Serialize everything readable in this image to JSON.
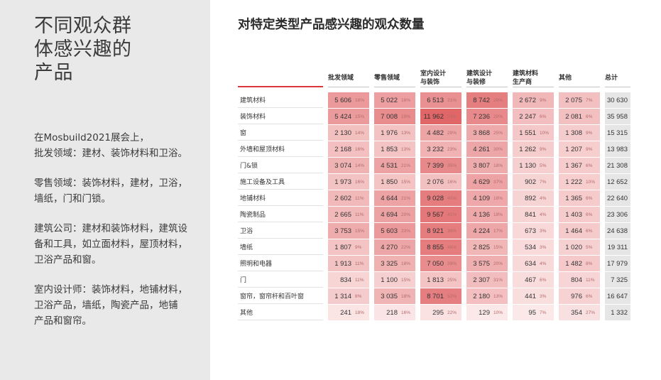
{
  "left_panel": {
    "title": "不同观众群\n体感兴趣的\n产品",
    "paragraphs": [
      "在Mosbuild2021展会上，\n批发领域：建材、装饰材料和卫浴。",
      "零售领域：装饰材料，建材，卫浴，\n墙纸，门和门锁。",
      "建筑公司：建材和装饰材料，建筑设\n备和工具，如立面材料，屋顶材料，\n卫浴产品和窗。",
      "室内设计师：装饰材料，地铺材料，\n卫浴产品，墙纸，陶瓷产品，地铺\n产品和窗帘。"
    ]
  },
  "colors": {
    "panel_bg": "#e9e9e9",
    "accent_red": "#d9363e",
    "heat_low": "#fdf1f1",
    "heat_high": "#e06668",
    "total_bg": "#e6e6e6"
  },
  "chart_data": {
    "type": "heatmap",
    "title": "对特定类型产品感兴趣的观众数量",
    "columns": [
      "批发领域",
      "零售领域",
      "室内设计\n与装饰",
      "建筑设计\n与装修",
      "建筑材料\n生产商",
      "其他"
    ],
    "total_column": "总计",
    "rows": [
      {
        "label": "建筑材料",
        "values": [
          5606,
          5022,
          6513,
          8742,
          2672,
          2075
        ],
        "percents": [
          18,
          16,
          21,
          29,
          9,
          7
        ],
        "total": 30630
      },
      {
        "label": "装饰材料",
        "values": [
          5424,
          7008,
          11962,
          7236,
          2247,
          2081
        ],
        "percents": [
          15,
          19,
          33,
          20,
          6,
          6
        ],
        "total": 35958
      },
      {
        "label": "窗",
        "values": [
          2130,
          1976,
          4482,
          3868,
          1551,
          1308
        ],
        "percents": [
          14,
          13,
          29,
          25,
          10,
          9
        ],
        "total": 15315
      },
      {
        "label": "外墙和屋顶材料",
        "values": [
          2168,
          1853,
          3232,
          4261,
          1262,
          1207
        ],
        "percents": [
          16,
          13,
          23,
          30,
          9,
          9
        ],
        "total": 13983
      },
      {
        "label": "门&锁",
        "values": [
          3074,
          4531,
          7399,
          3807,
          1130,
          1367
        ],
        "percents": [
          14,
          21,
          35,
          18,
          5,
          6
        ],
        "total": 21308
      },
      {
        "label": "施工设备及工具",
        "values": [
          1973,
          1850,
          2076,
          4629,
          902,
          1222
        ],
        "percents": [
          16,
          15,
          16,
          37,
          7,
          10
        ],
        "total": 12652
      },
      {
        "label": "地铺材料",
        "values": [
          2602,
          4644,
          9028,
          4109,
          892,
          1365
        ],
        "percents": [
          11,
          21,
          40,
          18,
          4,
          6
        ],
        "total": 22640
      },
      {
        "label": "陶瓷制品",
        "values": [
          2665,
          4694,
          9567,
          4136,
          841,
          1403
        ],
        "percents": [
          11,
          20,
          41,
          18,
          4,
          6
        ],
        "total": 23306
      },
      {
        "label": "卫浴",
        "values": [
          3753,
          5603,
          8921,
          4224,
          673,
          1464
        ],
        "percents": [
          15,
          23,
          36,
          17,
          3,
          6
        ],
        "total": 24638
      },
      {
        "label": "墙纸",
        "values": [
          1807,
          4270,
          8855,
          2825,
          534,
          1020
        ],
        "percents": [
          9,
          22,
          46,
          15,
          3,
          5
        ],
        "total": 19311
      },
      {
        "label": "照明和电器",
        "values": [
          1913,
          3325,
          7050,
          3575,
          634,
          1482
        ],
        "percents": [
          11,
          18,
          39,
          20,
          4,
          8
        ],
        "total": 17979
      },
      {
        "label": "门",
        "values": [
          834,
          1100,
          1813,
          2307,
          467,
          804
        ],
        "percents": [
          11,
          15,
          25,
          31,
          6,
          11
        ],
        "total": 7325
      },
      {
        "label": "窗帘，窗帘杆和百叶窗",
        "values": [
          1314,
          3035,
          8701,
          2180,
          441,
          976
        ],
        "percents": [
          8,
          18,
          52,
          13,
          3,
          6
        ],
        "total": 16647
      },
      {
        "label": "其他",
        "values": [
          241,
          218,
          295,
          129,
          95,
          354
        ],
        "percents": [
          18,
          16,
          22,
          10,
          7,
          27
        ],
        "total": 1332
      }
    ]
  }
}
